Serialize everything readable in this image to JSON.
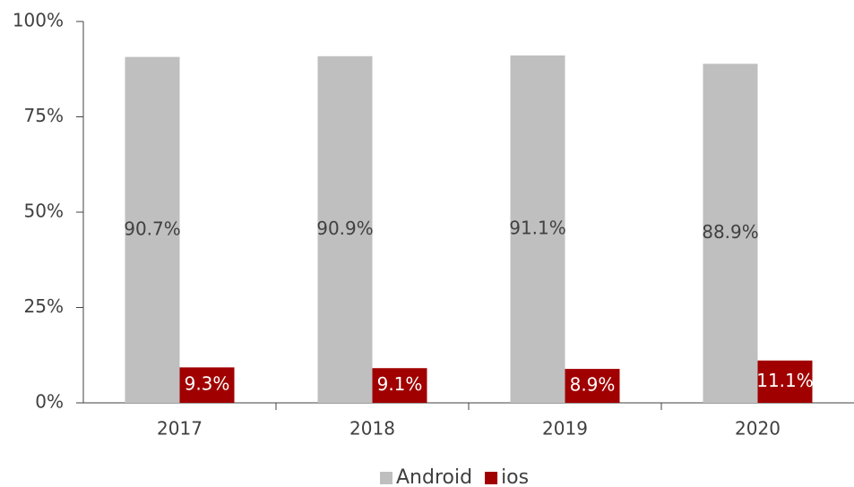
{
  "chart_data": {
    "type": "bar",
    "categories": [
      "2017",
      "2018",
      "2019",
      "2020"
    ],
    "series": [
      {
        "name": "Android",
        "color": "#bfbfbf",
        "values": [
          90.7,
          90.9,
          91.1,
          88.9
        ],
        "value_labels": [
          "90.7%",
          "90.9%",
          "91.1%",
          "88.9%"
        ]
      },
      {
        "name": "ios",
        "color": "#a00000",
        "values": [
          9.3,
          9.1,
          8.9,
          11.1
        ],
        "value_labels": [
          "9.3%",
          "9.1%",
          "8.9%",
          "11.1%"
        ]
      }
    ],
    "ylim": [
      0,
      100
    ],
    "yticks": [
      {
        "value": 0,
        "label": "0%"
      },
      {
        "value": 25,
        "label": "25%"
      },
      {
        "value": 50,
        "label": "50%"
      },
      {
        "value": 75,
        "label": "75%"
      },
      {
        "value": 100,
        "label": "100%"
      }
    ],
    "grid": false,
    "legend": "bottom"
  }
}
